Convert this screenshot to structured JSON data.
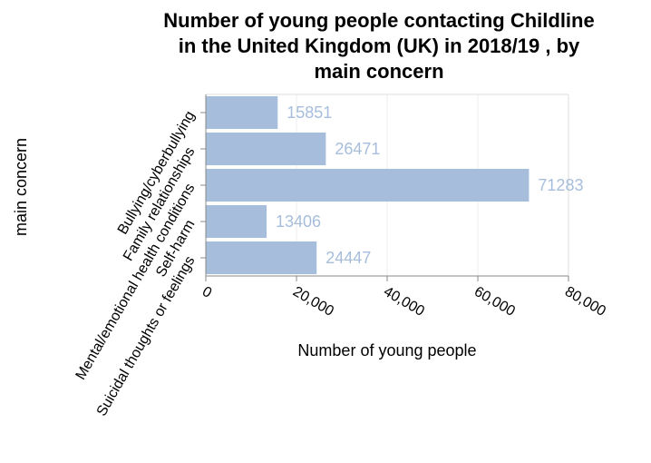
{
  "chart_data": {
    "type": "bar",
    "orientation": "horizontal",
    "title_lines": [
      "Number of young people contacting Childline",
      "in the United Kingdom (UK) in 2018/19 , by",
      "main concern"
    ],
    "xlabel": "Number of young people",
    "ylabel": "main concern",
    "categories": [
      "Bullying/cyberbullying",
      "Family relationships",
      "Mental/emotional health conditions",
      "Self-harm",
      "Suicidal thoughts or feelings"
    ],
    "values": [
      15851,
      26471,
      71283,
      13406,
      24447
    ],
    "value_labels": [
      "15851",
      "26471",
      "71283",
      "13406",
      "24447"
    ],
    "xlim": [
      0,
      80000
    ],
    "xticks": [
      0,
      20000,
      40000,
      60000,
      80000
    ],
    "xtick_labels": [
      "0",
      "20,000",
      "40,000",
      "60,000",
      "80,000"
    ],
    "grid": true,
    "bar_color": "#a6bddb",
    "label_color": "#a6bddb"
  }
}
